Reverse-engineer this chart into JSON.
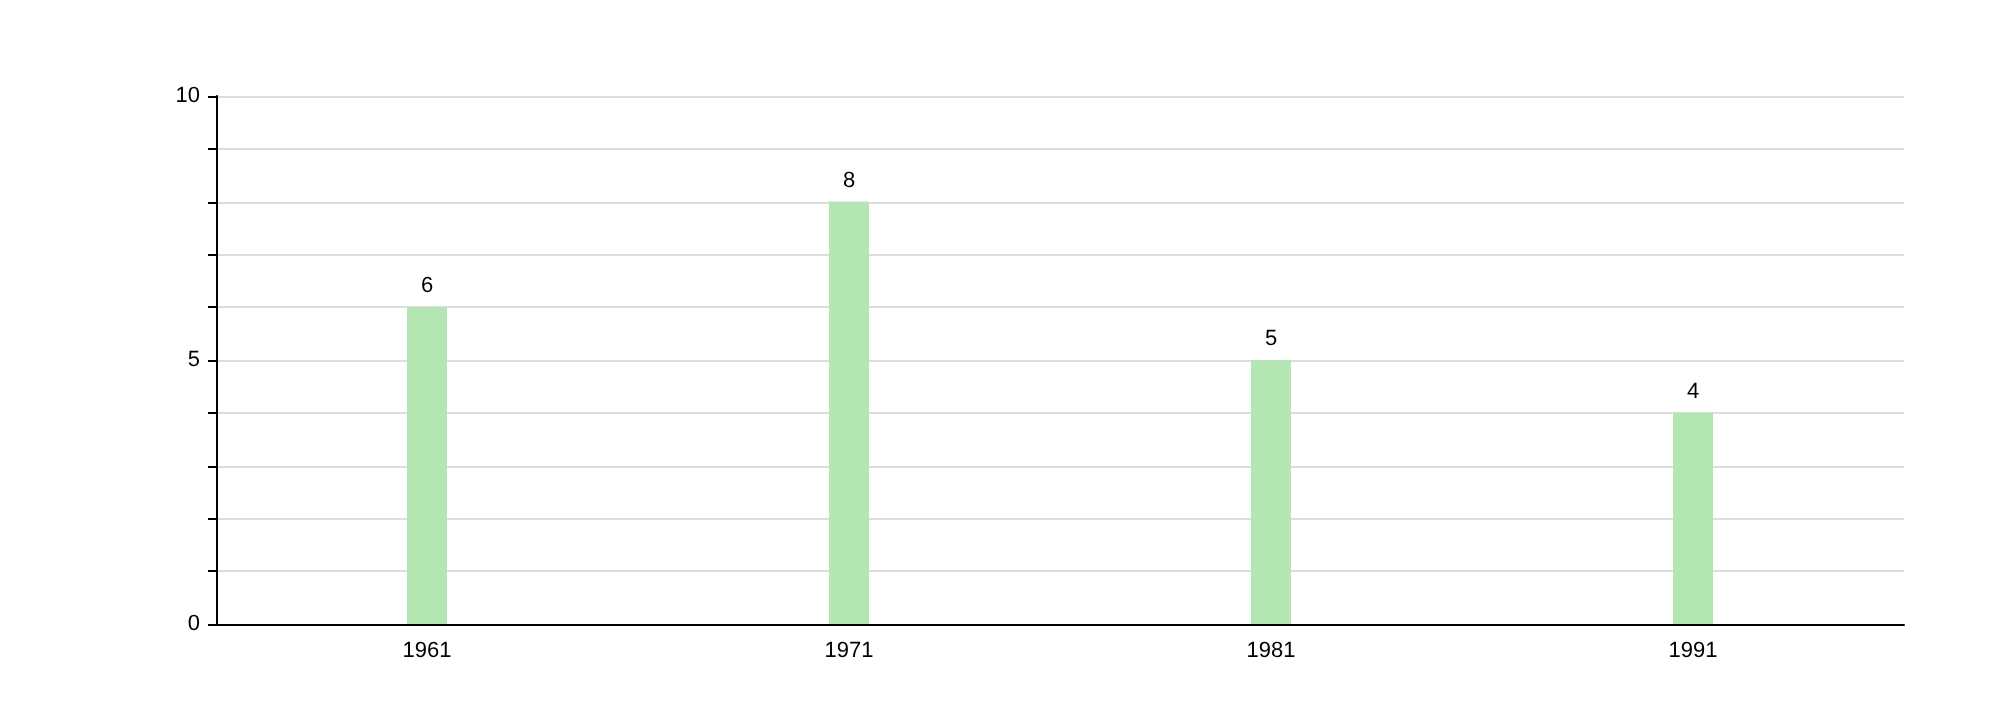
{
  "chart_data": {
    "type": "bar",
    "categories": [
      "1961",
      "1971",
      "1981",
      "1991"
    ],
    "values": [
      6,
      8,
      5,
      4
    ],
    "color": "#b3e6b3",
    "ylim": [
      0,
      10
    ],
    "yticks": [
      0,
      {
        "value": 1,
        "label": null
      },
      {
        "value": 2,
        "label": null
      },
      {
        "value": 3,
        "label": null
      },
      {
        "value": 4,
        "label": null
      },
      5,
      {
        "value": 6,
        "label": null
      },
      {
        "value": 7,
        "label": null
      },
      {
        "value": 8,
        "label": null
      },
      {
        "value": 9,
        "label": null
      },
      10
    ],
    "grid": "y",
    "data_labels": true
  }
}
